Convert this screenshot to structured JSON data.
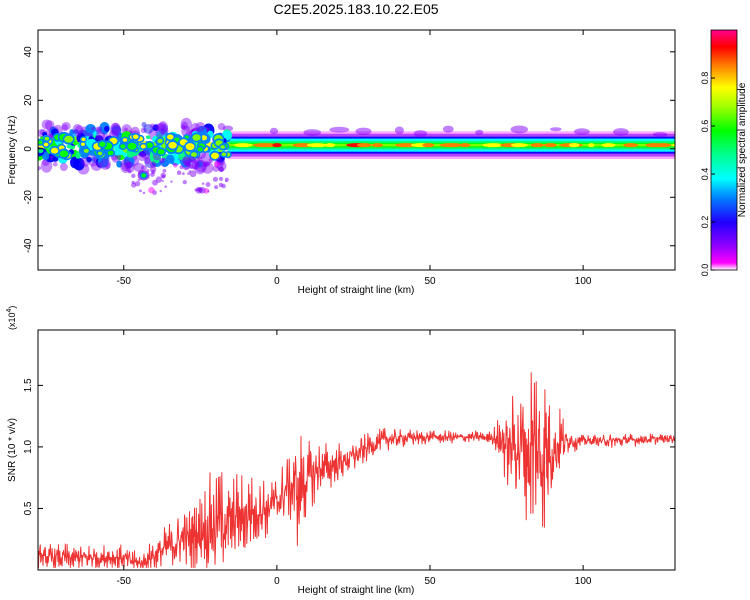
{
  "figure": {
    "title": "C2E5.2025.183.10.22.E05"
  },
  "chart_data": [
    {
      "type": "heatmap",
      "xlabel": "Height of straight line (km)",
      "ylabel": "Frequency (Hz)",
      "xlim": [
        -78,
        130
      ],
      "ylim": [
        -50,
        49
      ],
      "x_ticks": [
        "-50",
        "0",
        "50",
        "100"
      ],
      "x_tick_values": [
        -50,
        0,
        50,
        100
      ],
      "y_ticks": [
        "-40",
        "-20",
        "0",
        "20",
        "40"
      ],
      "y_tick_values": [
        -40,
        -20,
        0,
        20,
        40
      ],
      "grid": false,
      "colorbar": {
        "label": "Normalized spectral amplitude",
        "range": [
          0,
          1
        ],
        "ticks": [
          "0.0",
          "0.2",
          "0.4",
          "0.6",
          "0.8"
        ],
        "tick_values": [
          0.0,
          0.2,
          0.4,
          0.6,
          0.8
        ],
        "colormap": [
          "#ff00ff",
          "#8000ff",
          "#0000ff",
          "#0080ff",
          "#00ffff",
          "#00ff80",
          "#00ff00",
          "#80ff00",
          "#ffff00",
          "#ff8000",
          "#ff0000",
          "#ff0080"
        ]
      },
      "features": {
        "scattered_noise_region_km": [
          -78,
          -16
        ],
        "continuous_band_region_km": [
          -16,
          130
        ],
        "band_center_hz": 1.5,
        "band_halfwidth_hz": 3.5,
        "peak_amplitude": 0.9
      }
    },
    {
      "type": "line",
      "xlabel": "Height of straight line (km)",
      "ylabel": "SNR (10 * v/v)",
      "y_multiplier_label": "(x10",
      "y_multiplier_exponent": "4",
      "xlim": [
        -78,
        130
      ],
      "ylim": [
        0,
        1.95
      ],
      "x_ticks": [
        "-50",
        "0",
        "50",
        "100"
      ],
      "x_tick_values": [
        -50,
        0,
        50,
        100
      ],
      "y_ticks": [
        "0.5",
        "1.0",
        "1.5"
      ],
      "y_tick_values": [
        0.5,
        1.0,
        1.5
      ],
      "grid": false,
      "color": "#ee3333",
      "series": [
        {
          "x": [
            -78,
            -70,
            -60,
            -50,
            -45,
            -40,
            -35,
            -30,
            -25,
            -20,
            -15,
            -10,
            -5,
            0,
            5,
            7,
            10,
            15,
            20,
            25,
            30,
            35,
            40,
            50,
            60,
            70,
            75,
            80,
            83,
            86,
            88,
            90,
            95,
            100,
            110,
            120,
            130
          ],
          "y": [
            0.1,
            0.1,
            0.1,
            0.1,
            0.05,
            0.12,
            0.2,
            0.25,
            0.3,
            0.38,
            0.4,
            0.45,
            0.5,
            0.55,
            0.7,
            0.65,
            0.75,
            0.82,
            0.88,
            0.92,
            1.0,
            1.06,
            1.07,
            1.08,
            1.08,
            1.08,
            1.02,
            1.0,
            0.98,
            0.95,
            1.0,
            1.0,
            1.05,
            1.05,
            1.05,
            1.06,
            1.07
          ]
        }
      ],
      "y_amplitude_envelope": {
        "x": [
          -78,
          -60,
          -45,
          -35,
          -25,
          -20,
          -15,
          -10,
          -5,
          0,
          5,
          8,
          10,
          15,
          20,
          30,
          40,
          50,
          60,
          70,
          75,
          80,
          83,
          86,
          90,
          95,
          100,
          110,
          130
        ],
        "amp": [
          0.12,
          0.12,
          0.1,
          0.2,
          0.35,
          0.5,
          0.4,
          0.35,
          0.3,
          0.22,
          0.35,
          0.6,
          0.3,
          0.22,
          0.18,
          0.12,
          0.08,
          0.06,
          0.05,
          0.06,
          0.35,
          0.55,
          0.9,
          0.95,
          0.5,
          0.12,
          0.05,
          0.06,
          0.04
        ]
      }
    }
  ]
}
